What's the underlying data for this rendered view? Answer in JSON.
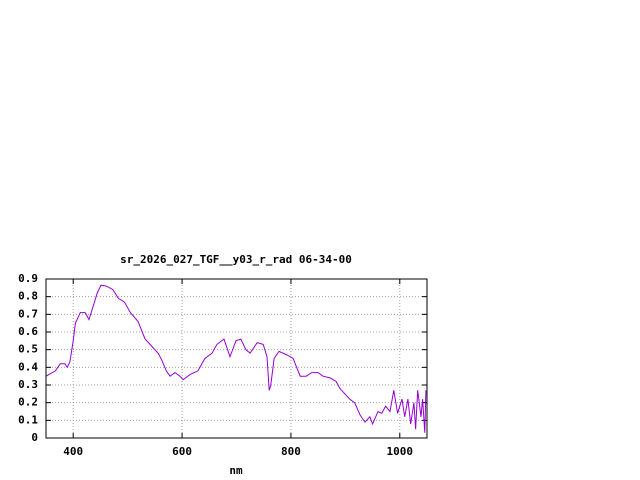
{
  "chart_data": {
    "type": "line",
    "title": "sr_2026_027_TGF__y03_r_rad 06-34-00",
    "x_label": "nm",
    "x": [
      350,
      367,
      376,
      385,
      389,
      394,
      400,
      404,
      413,
      422,
      429,
      437,
      444,
      451,
      461,
      473,
      483,
      494,
      505,
      519,
      532,
      541,
      556,
      563,
      571,
      578,
      587,
      596,
      602,
      615,
      629,
      642,
      655,
      664,
      677,
      688,
      699,
      708,
      717,
      725,
      738,
      749,
      756,
      760,
      763,
      769,
      778,
      793,
      804,
      817,
      828,
      838,
      850,
      859,
      872,
      883,
      890,
      899,
      908,
      917,
      927,
      936,
      945,
      950,
      960,
      967,
      974,
      982,
      989,
      996,
      1004,
      1009,
      1015,
      1020,
      1026,
      1029,
      1033,
      1039,
      1042,
      1046,
      1048
    ],
    "values": [
      0.35,
      0.38,
      0.42,
      0.42,
      0.4,
      0.43,
      0.55,
      0.65,
      0.71,
      0.71,
      0.67,
      0.75,
      0.82,
      0.865,
      0.86,
      0.84,
      0.79,
      0.77,
      0.71,
      0.66,
      0.56,
      0.53,
      0.48,
      0.44,
      0.38,
      0.35,
      0.37,
      0.35,
      0.33,
      0.36,
      0.38,
      0.45,
      0.48,
      0.53,
      0.56,
      0.46,
      0.55,
      0.56,
      0.5,
      0.48,
      0.54,
      0.53,
      0.46,
      0.27,
      0.3,
      0.45,
      0.49,
      0.47,
      0.45,
      0.35,
      0.35,
      0.37,
      0.37,
      0.35,
      0.34,
      0.32,
      0.28,
      0.25,
      0.22,
      0.2,
      0.13,
      0.09,
      0.12,
      0.08,
      0.15,
      0.14,
      0.18,
      0.15,
      0.27,
      0.14,
      0.22,
      0.12,
      0.22,
      0.08,
      0.2,
      0.05,
      0.27,
      0.12,
      0.22,
      0.03,
      0.27
    ],
    "color": "#9400d3",
    "xlim": [
      350,
      1050
    ],
    "xticks": [
      400,
      600,
      800,
      1000
    ],
    "ylim": [
      0,
      0.9
    ],
    "yticks": [
      0,
      0.1,
      0.2,
      0.3,
      0.4,
      0.5,
      0.6,
      0.7,
      0.8,
      0.9
    ],
    "grid": true
  }
}
